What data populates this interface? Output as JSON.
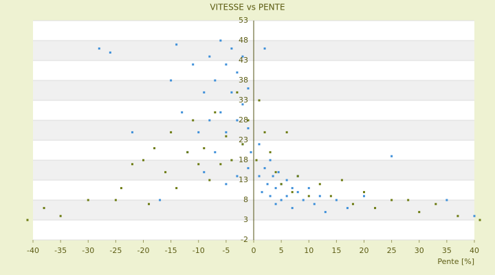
{
  "chart_data": {
    "type": "scatter",
    "title": "VITESSE vs PENTE",
    "x_label": "Pente [%]",
    "xlim": [
      -40,
      40
    ],
    "xticks": [
      -40,
      -35,
      -30,
      -25,
      -20,
      -15,
      -10,
      -5,
      0,
      5,
      10,
      15,
      20,
      25,
      30,
      35,
      40
    ],
    "ylim": [
      -2,
      53
    ],
    "yticks": [
      -2,
      3,
      8,
      13,
      18,
      23,
      28,
      33,
      38,
      43,
      48,
      53
    ],
    "grid": true,
    "series": [
      {
        "color": "#3d8fd9",
        "x": [
          -28,
          -26,
          -22,
          -17,
          -15,
          -14,
          -13,
          -12,
          -11,
          -10,
          -9,
          -9,
          -8,
          -8,
          -7,
          -7,
          -6,
          -6,
          -5,
          -5,
          -5,
          -4,
          -4,
          -4,
          -3,
          -3,
          -3,
          -2,
          -2,
          -2,
          -1,
          -1,
          -1,
          -0.5,
          0.5,
          1,
          1,
          1.5,
          2,
          2,
          2.5,
          3,
          3,
          3.5,
          4,
          4,
          4.5,
          5,
          5,
          6,
          6,
          7,
          7,
          8,
          8,
          9,
          10,
          11,
          12,
          13,
          15,
          17,
          20,
          25,
          35,
          40
        ],
        "y": [
          46,
          45,
          25,
          8,
          38,
          47,
          30,
          20,
          42,
          25,
          35,
          15,
          44,
          28,
          38,
          20,
          48,
          30,
          42,
          25,
          12,
          46,
          35,
          18,
          40,
          28,
          14,
          44,
          32,
          22,
          36,
          26,
          16,
          20,
          18,
          22,
          14,
          10,
          46,
          16,
          12,
          18,
          9,
          14,
          11,
          7,
          15,
          12,
          8,
          13,
          9,
          11,
          6,
          10,
          14,
          8,
          11,
          7,
          9,
          5,
          8,
          6,
          9,
          19,
          8,
          4
        ]
      },
      {
        "color": "#6b7a10",
        "x": [
          -41,
          -38,
          -35,
          -30,
          -25,
          -24,
          -22,
          -20,
          -19,
          -18,
          -16,
          -15,
          -14,
          -12,
          -11,
          -10,
          -9,
          -8,
          -7,
          -6,
          -5,
          -4,
          -3,
          -2,
          -1,
          0.5,
          1,
          2,
          3,
          4,
          5,
          6,
          7,
          8,
          10,
          12,
          14,
          16,
          18,
          20,
          22,
          25,
          28,
          30,
          33,
          37,
          41
        ],
        "y": [
          3,
          6,
          4,
          8,
          8,
          11,
          17,
          18,
          7,
          21,
          15,
          25,
          11,
          20,
          28,
          17,
          21,
          13,
          30,
          17,
          24,
          18,
          35,
          22,
          28,
          18,
          33,
          25,
          20,
          15,
          12,
          25,
          10,
          14,
          9,
          12,
          9,
          13,
          7,
          10,
          6,
          8,
          8,
          5,
          7,
          4,
          3
        ]
      }
    ]
  }
}
